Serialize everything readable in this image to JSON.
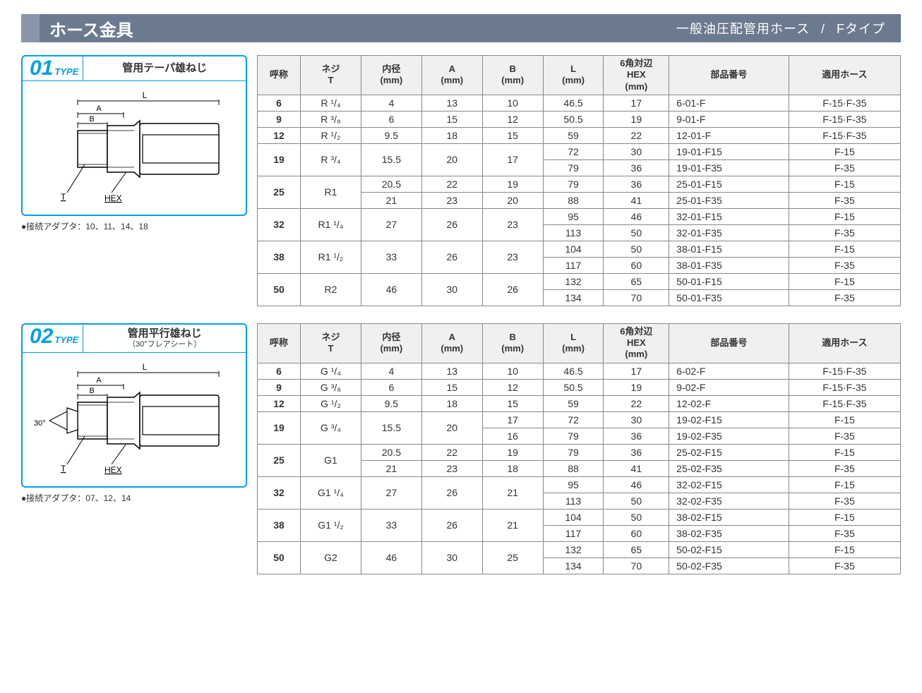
{
  "header": {
    "title": "ホース金具",
    "subtitle1": "一般油圧配管用ホース",
    "separator": "/",
    "subtitle2": "Fタイプ"
  },
  "columns": [
    {
      "key": "name",
      "label": "呼称"
    },
    {
      "key": "t",
      "label": "ネジ\nT"
    },
    {
      "key": "dia",
      "label": "内径\n(mm)"
    },
    {
      "key": "a",
      "label": "A\n(mm)"
    },
    {
      "key": "b",
      "label": "B\n(mm)"
    },
    {
      "key": "l",
      "label": "L\n(mm)"
    },
    {
      "key": "hex",
      "label": "6角対辺\nHEX\n(mm)"
    },
    {
      "key": "part",
      "label": "部品番号"
    },
    {
      "key": "hose",
      "label": "適用ホース"
    }
  ],
  "colors": {
    "accent": "#00a0e9",
    "header_bg": "#6b7a8f",
    "header_accent": "#8a96a7",
    "border": "#888888",
    "th_bg": "#f0f0f0"
  },
  "types": [
    {
      "num": "01",
      "num_sub": "TYPE",
      "desc": "管用テーパ雄ねじ",
      "sub_desc": "",
      "adapter_note": "●接続アダプタ：10、11、14、18",
      "diagram_labels": {
        "L": "L",
        "A": "A",
        "B": "B",
        "T": "T",
        "HEX": "HEX"
      },
      "rows": [
        {
          "span": 1,
          "name": "6",
          "t": "R ¹/₄",
          "dia": "4",
          "a": "13",
          "b": "10",
          "sub": [
            {
              "l": "46.5",
              "hex": "17",
              "part": "6-01-F",
              "hose": "F-15·F-35"
            }
          ]
        },
        {
          "span": 1,
          "name": "9",
          "t": "R ³/₈",
          "dia": "6",
          "a": "15",
          "b": "12",
          "sub": [
            {
              "l": "50.5",
              "hex": "19",
              "part": "9-01-F",
              "hose": "F-15·F-35"
            }
          ]
        },
        {
          "span": 1,
          "name": "12",
          "t": "R ¹/₂",
          "dia": "9.5",
          "a": "18",
          "b": "15",
          "sub": [
            {
              "l": "59",
              "hex": "22",
              "part": "12-01-F",
              "hose": "F-15·F-35"
            }
          ]
        },
        {
          "span": 2,
          "name": "19",
          "t": "R ³/₄",
          "dia": "15.5",
          "a": "20",
          "b": "17",
          "sub": [
            {
              "l": "72",
              "hex": "30",
              "part": "19-01-F15",
              "hose": "F-15"
            },
            {
              "l": "79",
              "hex": "36",
              "part": "19-01-F35",
              "hose": "F-35"
            }
          ]
        },
        {
          "span": 2,
          "name": "25",
          "t": "R1",
          "sub": [
            {
              "dia": "20.5",
              "a": "22",
              "b": "19",
              "l": "79",
              "hex": "36",
              "part": "25-01-F15",
              "hose": "F-15"
            },
            {
              "dia": "21",
              "a": "23",
              "b": "20",
              "l": "88",
              "hex": "41",
              "part": "25-01-F35",
              "hose": "F-35"
            }
          ],
          "split_dia": true
        },
        {
          "span": 2,
          "name": "32",
          "t": "R1 ¹/₄",
          "dia": "27",
          "a": "26",
          "b": "23",
          "sub": [
            {
              "l": "95",
              "hex": "46",
              "part": "32-01-F15",
              "hose": "F-15"
            },
            {
              "l": "113",
              "hex": "50",
              "part": "32-01-F35",
              "hose": "F-35"
            }
          ]
        },
        {
          "span": 2,
          "name": "38",
          "t": "R1 ¹/₂",
          "dia": "33",
          "a": "26",
          "b": "23",
          "sub": [
            {
              "l": "104",
              "hex": "50",
              "part": "38-01-F15",
              "hose": "F-15"
            },
            {
              "l": "117",
              "hex": "60",
              "part": "38-01-F35",
              "hose": "F-35"
            }
          ]
        },
        {
          "span": 2,
          "name": "50",
          "t": "R2",
          "dia": "46",
          "a": "30",
          "b": "26",
          "sub": [
            {
              "l": "132",
              "hex": "65",
              "part": "50-01-F15",
              "hose": "F-15"
            },
            {
              "l": "134",
              "hex": "70",
              "part": "50-01-F35",
              "hose": "F-35"
            }
          ]
        }
      ]
    },
    {
      "num": "02",
      "num_sub": "TYPE",
      "desc": "管用平行雄ねじ",
      "sub_desc": "（30°フレアシート）",
      "adapter_note": "●接続アダプタ：07、12、14",
      "diagram_labels": {
        "L": "L",
        "A": "A",
        "B": "B",
        "T": "T",
        "HEX": "HEX",
        "angle": "30°"
      },
      "rows": [
        {
          "span": 1,
          "name": "6",
          "t": "G ¹/₄",
          "dia": "4",
          "a": "13",
          "b": "10",
          "sub": [
            {
              "l": "46.5",
              "hex": "17",
              "part": "6-02-F",
              "hose": "F-15·F-35"
            }
          ]
        },
        {
          "span": 1,
          "name": "9",
          "t": "G ³/₈",
          "dia": "6",
          "a": "15",
          "b": "12",
          "sub": [
            {
              "l": "50.5",
              "hex": "19",
              "part": "9-02-F",
              "hose": "F-15·F-35"
            }
          ]
        },
        {
          "span": 1,
          "name": "12",
          "t": "G ¹/₂",
          "dia": "9.5",
          "a": "18",
          "b": "15",
          "sub": [
            {
              "l": "59",
              "hex": "22",
              "part": "12-02-F",
              "hose": "F-15·F-35"
            }
          ]
        },
        {
          "span": 2,
          "name": "19",
          "t": "G ³/₄",
          "dia": "15.5",
          "a": "20",
          "sub": [
            {
              "b": "17",
              "l": "72",
              "hex": "30",
              "part": "19-02-F15",
              "hose": "F-15"
            },
            {
              "b": "16",
              "l": "79",
              "hex": "36",
              "part": "19-02-F35",
              "hose": "F-35"
            }
          ],
          "split_b": true
        },
        {
          "span": 2,
          "name": "25",
          "t": "G1",
          "sub": [
            {
              "dia": "20.5",
              "a": "22",
              "b": "19",
              "l": "79",
              "hex": "36",
              "part": "25-02-F15",
              "hose": "F-15"
            },
            {
              "dia": "21",
              "a": "23",
              "b": "18",
              "l": "88",
              "hex": "41",
              "part": "25-02-F35",
              "hose": "F-35"
            }
          ],
          "split_dia": true
        },
        {
          "span": 2,
          "name": "32",
          "t": "G1 ¹/₄",
          "dia": "27",
          "a": "26",
          "b": "21",
          "sub": [
            {
              "l": "95",
              "hex": "46",
              "part": "32-02-F15",
              "hose": "F-15"
            },
            {
              "l": "113",
              "hex": "50",
              "part": "32-02-F35",
              "hose": "F-35"
            }
          ]
        },
        {
          "span": 2,
          "name": "38",
          "t": "G1 ¹/₂",
          "dia": "33",
          "a": "26",
          "b": "21",
          "sub": [
            {
              "l": "104",
              "hex": "50",
              "part": "38-02-F15",
              "hose": "F-15"
            },
            {
              "l": "117",
              "hex": "60",
              "part": "38-02-F35",
              "hose": "F-35"
            }
          ]
        },
        {
          "span": 2,
          "name": "50",
          "t": "G2",
          "dia": "46",
          "a": "30",
          "b": "25",
          "sub": [
            {
              "l": "132",
              "hex": "65",
              "part": "50-02-F15",
              "hose": "F-15"
            },
            {
              "l": "134",
              "hex": "70",
              "part": "50-02-F35",
              "hose": "F-35"
            }
          ]
        }
      ]
    }
  ]
}
